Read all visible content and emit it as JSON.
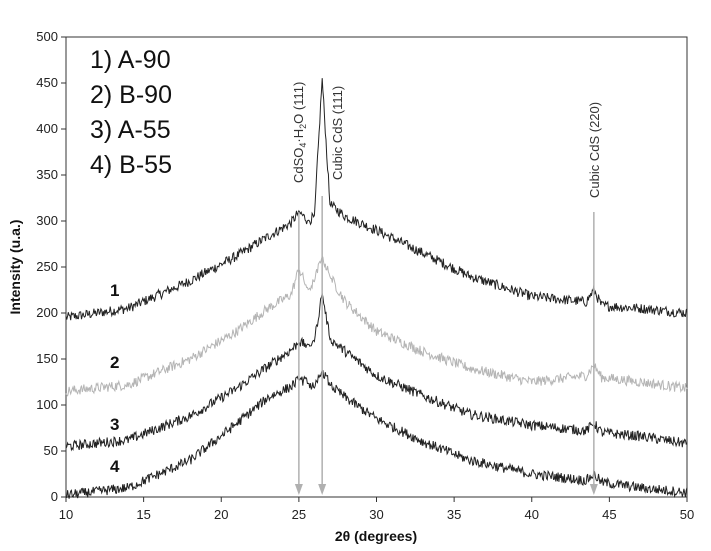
{
  "chart_data": {
    "type": "line",
    "xlabel": "2θ (degrees)",
    "ylabel": "Intensity (u.a.)",
    "xlim": [
      10,
      50
    ],
    "ylim": [
      0,
      500
    ],
    "xticks": [
      "10",
      "15",
      "20",
      "25",
      "30",
      "35",
      "40",
      "45",
      "50"
    ],
    "yticks": [
      "0",
      "50",
      "100",
      "150",
      "200",
      "250",
      "300",
      "350",
      "400",
      "450",
      "500"
    ],
    "grid": false,
    "legend_position": "top-left",
    "legend": [
      "1) A-90",
      "2) B-90",
      "3) A-55",
      "4) B-55"
    ],
    "curve_labels": [
      "1",
      "2",
      "3",
      "4"
    ],
    "peak_labels": [
      {
        "pre": "CdSO",
        "sub1": "4",
        "mid": "·H",
        "sub2": "2",
        "post": "O (111)",
        "x": 25.0
      },
      {
        "text": "Cubic CdS (111)",
        "x": 26.5
      },
      {
        "text": "Cubic CdS (220)",
        "x": 44.0
      }
    ],
    "series": [
      {
        "name": "1) A-90",
        "color": "#222222",
        "x": [
          10,
          14,
          18,
          21,
          23,
          24.5,
          25.0,
          25.6,
          26.0,
          26.5,
          27.0,
          28,
          30,
          33,
          36,
          40,
          43.5,
          44.0,
          44.5,
          47,
          50
        ],
        "y": [
          195,
          205,
          235,
          262,
          283,
          298,
          310,
          300,
          305,
          455,
          318,
          305,
          290,
          265,
          240,
          218,
          212,
          225,
          208,
          205,
          200
        ]
      },
      {
        "name": "2) B-90",
        "color": "#b5b5b5",
        "x": [
          10,
          14,
          18,
          21,
          23,
          24.5,
          25.0,
          25.6,
          26.0,
          26.5,
          27.0,
          28,
          30,
          33,
          36,
          40,
          43.5,
          44.0,
          44.5,
          47,
          50
        ],
        "y": [
          115,
          122,
          150,
          180,
          205,
          220,
          248,
          225,
          235,
          262,
          240,
          212,
          180,
          158,
          140,
          125,
          132,
          143,
          130,
          125,
          118
        ]
      },
      {
        "name": "3) A-55",
        "color": "#222222",
        "x": [
          10,
          14,
          18,
          21,
          23,
          24.5,
          25.0,
          25.6,
          26.0,
          26.5,
          27.0,
          28,
          30,
          33,
          36,
          40,
          43.5,
          44.0,
          44.5,
          47,
          50
        ],
        "y": [
          55,
          62,
          88,
          118,
          142,
          160,
          168,
          165,
          170,
          222,
          172,
          158,
          132,
          110,
          90,
          78,
          72,
          80,
          70,
          66,
          58
        ]
      },
      {
        "name": "4) B-55",
        "color": "#222222",
        "x": [
          10,
          14,
          18,
          21,
          23,
          24.5,
          25.0,
          25.6,
          26.0,
          26.5,
          27.0,
          28,
          30,
          33,
          36,
          40,
          43.5,
          44.0,
          44.5,
          47,
          50
        ],
        "y": [
          2,
          10,
          40,
          80,
          108,
          120,
          128,
          124,
          118,
          138,
          122,
          108,
          85,
          60,
          40,
          25,
          18,
          25,
          16,
          10,
          5
        ]
      }
    ]
  }
}
